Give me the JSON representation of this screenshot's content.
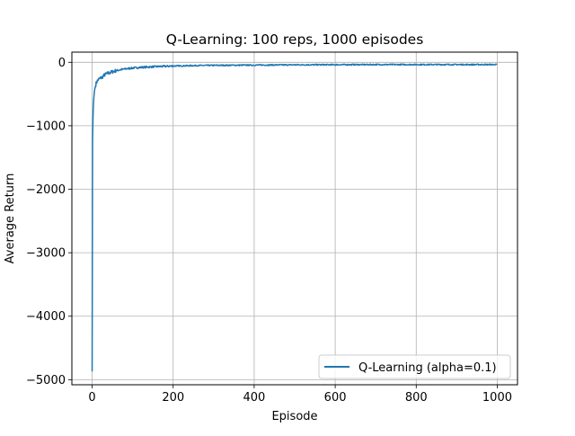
{
  "chart_data": {
    "type": "line",
    "title": "Q-Learning: 100 reps, 1000 episodes",
    "xlabel": "Episode",
    "ylabel": "Average Return",
    "xlim": [
      -50,
      1050
    ],
    "ylim": [
      -5080,
      160
    ],
    "xticks": [
      0,
      200,
      400,
      600,
      800,
      1000
    ],
    "yticks": [
      0,
      -1000,
      -2000,
      -3000,
      -4000,
      -5000
    ],
    "xtick_labels": [
      "0",
      "200",
      "400",
      "600",
      "800",
      "1000"
    ],
    "ytick_labels": [
      "0",
      "−1000",
      "−2000",
      "−3000",
      "−4000",
      "−5000"
    ],
    "grid": true,
    "legend_position": "lower right",
    "series": [
      {
        "name": "Q-Learning (alpha=0.1)",
        "color": "#1f77b4",
        "x": [
          0,
          1,
          2,
          3,
          4,
          5,
          6,
          8,
          10,
          12,
          15,
          20,
          25,
          30,
          40,
          50,
          60,
          80,
          100,
          120,
          150,
          200,
          250,
          300,
          400,
          500,
          600,
          700,
          800,
          900,
          1000
        ],
        "y": [
          -4870,
          -1250,
          -900,
          -700,
          -580,
          -500,
          -440,
          -380,
          -330,
          -300,
          -275,
          -250,
          -235,
          -200,
          -170,
          -150,
          -130,
          -105,
          -90,
          -80,
          -70,
          -58,
          -52,
          -48,
          -44,
          -40,
          -38,
          -36,
          -36,
          -36,
          -36
        ]
      }
    ]
  }
}
